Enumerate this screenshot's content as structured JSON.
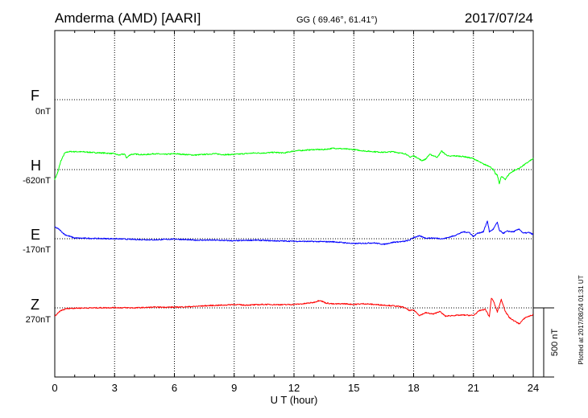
{
  "header": {
    "station": "Amderma (AMD)  [AARI]",
    "coords": "GG ( 69.46°,  61.41°)",
    "date": "2017/07/24"
  },
  "footer": {
    "plotted": "Plotted at 2017/08/24 01:31  UT"
  },
  "colors": {
    "F": "#ffa500",
    "H": "#00ff00",
    "E": "#0000ff",
    "Z": "#ff0000"
  },
  "chart_data": {
    "type": "line",
    "xlabel": "U T (hour)",
    "xlim": [
      0,
      24
    ],
    "x_ticks": [
      "0",
      "3",
      "6",
      "9",
      "12",
      "15",
      "18",
      "21",
      "24"
    ],
    "scale_bar": {
      "label": "500 nT",
      "value_nT": 500
    },
    "grid": true,
    "baselines": [
      {
        "component": "F",
        "label": "0nT"
      },
      {
        "component": "H",
        "label": "-620nT"
      },
      {
        "component": "E",
        "label": "-170nT"
      },
      {
        "component": "Z",
        "label": "270nT"
      }
    ],
    "series": [
      {
        "name": "H",
        "unit": "nT",
        "x": [
          0,
          0.15,
          0.3,
          0.5,
          0.7,
          1.0,
          1.5,
          2.0,
          2.5,
          3.0,
          3.2,
          3.5,
          3.6,
          3.8,
          4.0,
          4.5,
          5.0,
          5.5,
          6.0,
          6.5,
          7.0,
          7.5,
          8.0,
          8.5,
          9.0,
          9.5,
          10.0,
          10.5,
          11.0,
          11.5,
          12.0,
          12.5,
          13.0,
          13.5,
          14.0,
          14.5,
          15.0,
          15.5,
          16.0,
          16.5,
          17.0,
          17.3,
          17.6,
          17.8,
          18.0,
          18.2,
          18.4,
          18.6,
          18.8,
          19.0,
          19.2,
          19.4,
          19.6,
          19.8,
          20.0,
          20.5,
          21.0,
          21.5,
          21.8,
          22.0,
          22.1,
          22.2,
          22.3,
          22.4,
          22.6,
          22.8,
          23.0,
          23.3,
          23.6,
          24.0
        ],
        "y": [
          -690,
          -640,
          -560,
          -500,
          -490,
          -490,
          -492,
          -497,
          -500,
          -505,
          -515,
          -507,
          -535,
          -510,
          -508,
          -512,
          -505,
          -510,
          -505,
          -510,
          -515,
          -510,
          -505,
          -512,
          -510,
          -505,
          -500,
          -500,
          -495,
          -500,
          -485,
          -480,
          -475,
          -475,
          -465,
          -470,
          -475,
          -485,
          -490,
          -495,
          -490,
          -500,
          -505,
          -530,
          -520,
          -535,
          -555,
          -545,
          -510,
          -520,
          -530,
          -485,
          -510,
          -525,
          -520,
          -525,
          -540,
          -580,
          -595,
          -620,
          -650,
          -660,
          -720,
          -670,
          -690,
          -650,
          -630,
          -610,
          -580,
          -540
        ]
      },
      {
        "name": "E",
        "unit": "nT",
        "x": [
          0,
          0.2,
          0.5,
          1.0,
          2.0,
          3.0,
          4.0,
          5.0,
          6.0,
          7.0,
          8.0,
          9.0,
          10.0,
          11.0,
          12.0,
          13.0,
          14.0,
          15.0,
          16.0,
          16.5,
          17.0,
          17.5,
          17.8,
          18.0,
          18.3,
          18.6,
          19.0,
          19.5,
          20.0,
          20.5,
          20.8,
          21.0,
          21.2,
          21.5,
          21.7,
          21.8,
          22.0,
          22.2,
          22.3,
          22.5,
          22.7,
          23.0,
          23.3,
          23.5,
          23.8,
          24.0
        ],
        "y": [
          -85,
          -100,
          -140,
          -165,
          -168,
          -170,
          -175,
          -178,
          -172,
          -180,
          -180,
          -185,
          -180,
          -185,
          -188,
          -190,
          -192,
          -205,
          -200,
          -210,
          -195,
          -190,
          -180,
          -160,
          -150,
          -165,
          -165,
          -170,
          -150,
          -120,
          -125,
          -155,
          -130,
          -120,
          -40,
          -120,
          -100,
          -50,
          -110,
          -130,
          -115,
          -120,
          -100,
          -130,
          -125,
          -140
        ]
      },
      {
        "name": "Z",
        "unit": "nT",
        "x": [
          0,
          0.3,
          0.6,
          1.0,
          2.0,
          3.0,
          4.0,
          5.0,
          6.0,
          7.0,
          7.5,
          8.0,
          8.5,
          9.0,
          9.5,
          10.0,
          10.5,
          11.0,
          11.5,
          12.0,
          12.5,
          13.0,
          13.3,
          13.6,
          14.0,
          14.5,
          15.0,
          15.5,
          16.0,
          16.5,
          17.0,
          17.5,
          17.8,
          18.0,
          18.3,
          18.6,
          19.0,
          19.3,
          19.6,
          20.0,
          20.5,
          21.0,
          21.3,
          21.6,
          21.8,
          21.9,
          22.0,
          22.2,
          22.4,
          22.6,
          22.8,
          23.0,
          23.3,
          23.6,
          24.0
        ],
        "y": [
          210,
          250,
          265,
          268,
          270,
          272,
          270,
          275,
          275,
          280,
          285,
          288,
          290,
          295,
          290,
          292,
          295,
          294,
          293,
          295,
          300,
          310,
          325,
          305,
          298,
          300,
          295,
          300,
          295,
          290,
          285,
          275,
          250,
          255,
          215,
          235,
          225,
          245,
          210,
          215,
          218,
          215,
          250,
          260,
          205,
          340,
          320,
          240,
          330,
          245,
          200,
          180,
          155,
          200,
          220
        ]
      }
    ]
  }
}
